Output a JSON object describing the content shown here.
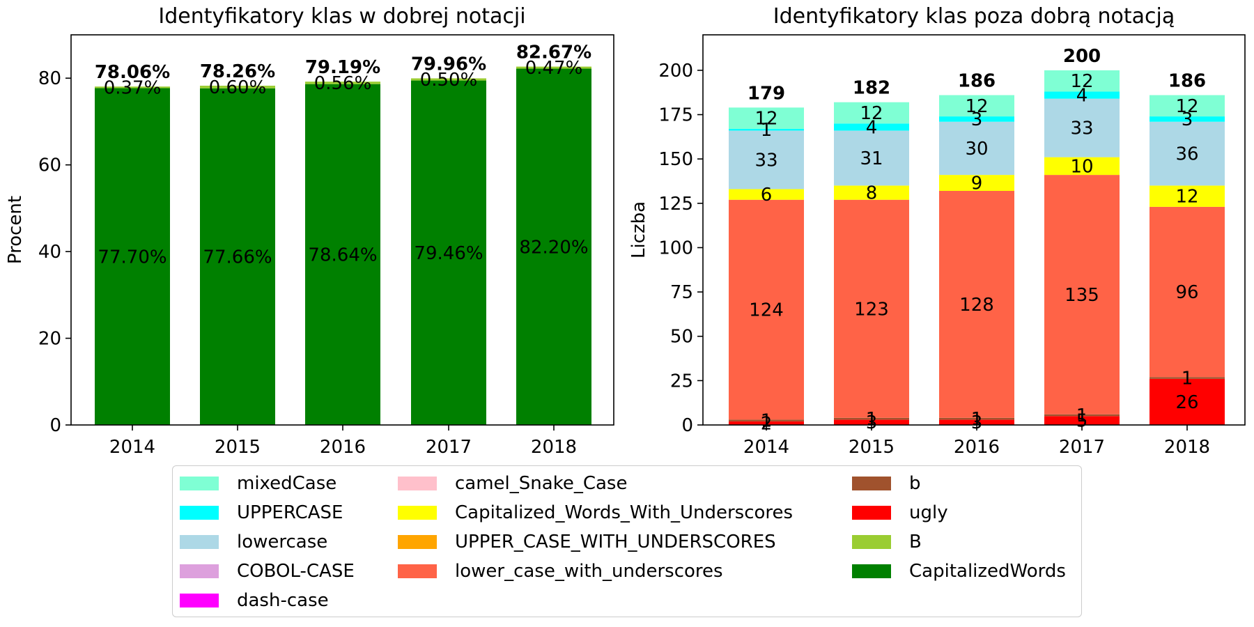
{
  "chart_data": [
    {
      "type": "bar",
      "stacked": true,
      "title": "Identyfikatory klas w dobrej notacji",
      "ylabel": "Procent",
      "xlabel": "",
      "categories": [
        "2014",
        "2015",
        "2016",
        "2017",
        "2018"
      ],
      "ylim": [
        0,
        90
      ],
      "yticks": [
        "0",
        "20",
        "40",
        "60",
        "80"
      ],
      "grid": false,
      "series": [
        {
          "name": "CapitalizedWords",
          "color": "#008000",
          "values": [
            77.7,
            77.66,
            78.64,
            79.46,
            82.2
          ],
          "labels": [
            "77.70%",
            "77.66%",
            "78.64%",
            "79.46%",
            "82.20%"
          ]
        },
        {
          "name": "B",
          "color": "#9acd32",
          "values": [
            0.37,
            0.6,
            0.56,
            0.5,
            0.47
          ],
          "labels": [
            "0.37%",
            "0.60%",
            "0.56%",
            "0.50%",
            "0.47%"
          ]
        }
      ],
      "totals": [
        "78.06%",
        "78.26%",
        "79.19%",
        "79.96%",
        "82.67%"
      ]
    },
    {
      "type": "bar",
      "stacked": true,
      "title": "Identyfikatory klas poza dobrą notacją",
      "ylabel": "Liczba",
      "xlabel": "",
      "categories": [
        "2014",
        "2015",
        "2016",
        "2017",
        "2018"
      ],
      "ylim": [
        0,
        220
      ],
      "yticks": [
        "0",
        "25",
        "50",
        "75",
        "100",
        "125",
        "150",
        "175",
        "200"
      ],
      "grid": false,
      "series": [
        {
          "name": "ugly",
          "color": "#ff0000",
          "values": [
            2,
            3,
            3,
            5,
            26
          ],
          "labels": [
            "2",
            "3",
            "3",
            "5",
            "26"
          ]
        },
        {
          "name": "b",
          "color": "#a0522d",
          "values": [
            1,
            1,
            1,
            1,
            1
          ],
          "labels": [
            "1",
            "1",
            "1",
            "1",
            "1"
          ]
        },
        {
          "name": "lower_case_with_underscores",
          "color": "#ff6347",
          "values": [
            124,
            123,
            128,
            135,
            96
          ],
          "labels": [
            "124",
            "123",
            "128",
            "135",
            "96"
          ]
        },
        {
          "name": "Capitalized_Words_With_Underscores",
          "color": "#ffff00",
          "values": [
            6,
            8,
            9,
            10,
            12
          ],
          "labels": [
            "6",
            "8",
            "9",
            "10",
            "12"
          ]
        },
        {
          "name": "lowercase",
          "color": "#add8e6",
          "values": [
            33,
            31,
            30,
            33,
            36
          ],
          "labels": [
            "33",
            "31",
            "30",
            "33",
            "36"
          ]
        },
        {
          "name": "UPPERCASE",
          "color": "#00ffff",
          "values": [
            1,
            4,
            3,
            4,
            3
          ],
          "labels": [
            "1",
            "4",
            "3",
            "4",
            "3"
          ]
        },
        {
          "name": "mixedCase",
          "color": "#7fffd4",
          "values": [
            12,
            12,
            12,
            12,
            12
          ],
          "labels": [
            "12",
            "12",
            "12",
            "12",
            "12"
          ]
        }
      ],
      "totals": [
        "179",
        "182",
        "186",
        "200",
        "186"
      ]
    }
  ],
  "legend": {
    "items": [
      {
        "label": "mixedCase",
        "color": "#7fffd4"
      },
      {
        "label": "UPPERCASE",
        "color": "#00ffff"
      },
      {
        "label": "lowercase",
        "color": "#add8e6"
      },
      {
        "label": "COBOL-CASE",
        "color": "#dda0dd"
      },
      {
        "label": "dash-case",
        "color": "#ff00ff"
      },
      {
        "label": "camel_Snake_Case",
        "color": "#ffc0cb"
      },
      {
        "label": "Capitalized_Words_With_Underscores",
        "color": "#ffff00"
      },
      {
        "label": "UPPER_CASE_WITH_UNDERSCORES",
        "color": "#ffa500"
      },
      {
        "label": "lower_case_with_underscores",
        "color": "#ff6347"
      },
      {
        "label": "b",
        "color": "#a0522d"
      },
      {
        "label": "ugly",
        "color": "#ff0000"
      },
      {
        "label": "B",
        "color": "#9acd32"
      },
      {
        "label": "CapitalizedWords",
        "color": "#008000"
      }
    ]
  }
}
